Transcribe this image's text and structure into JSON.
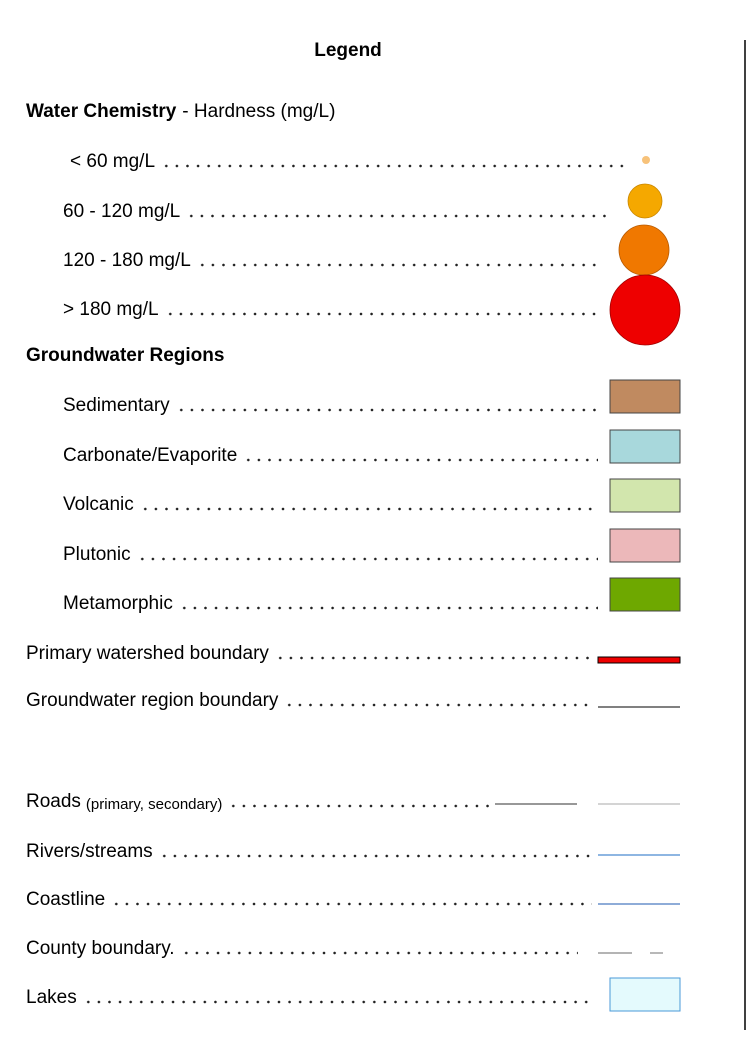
{
  "title": "Legend",
  "water_chemistry": {
    "label": "Water Chemistry",
    "description": "- Hardness (mg/L)",
    "items": [
      {
        "label": "< 60 mg/L"
      },
      {
        "label": "60 - 120 mg/L"
      },
      {
        "label": "120 - 180 mg/L"
      },
      {
        "label": "> 180 mg/L"
      }
    ]
  },
  "groundwater_regions": {
    "label": "Groundwater Regions",
    "items": [
      {
        "label": "Sedimentary"
      },
      {
        "label": "Carbonate/Evaporite"
      },
      {
        "label": "Volcanic"
      },
      {
        "label": "Plutonic"
      },
      {
        "label": "Metamorphic"
      }
    ]
  },
  "boundaries": [
    {
      "label": "Primary watershed boundary"
    },
    {
      "label": "Groundwater region boundary"
    }
  ],
  "features": [
    {
      "label": "Roads",
      "note": "(primary, secondary)"
    },
    {
      "label": "Rivers/streams"
    },
    {
      "label": "Coastline"
    },
    {
      "label": "County boundary."
    },
    {
      "label": "Lakes"
    }
  ]
}
